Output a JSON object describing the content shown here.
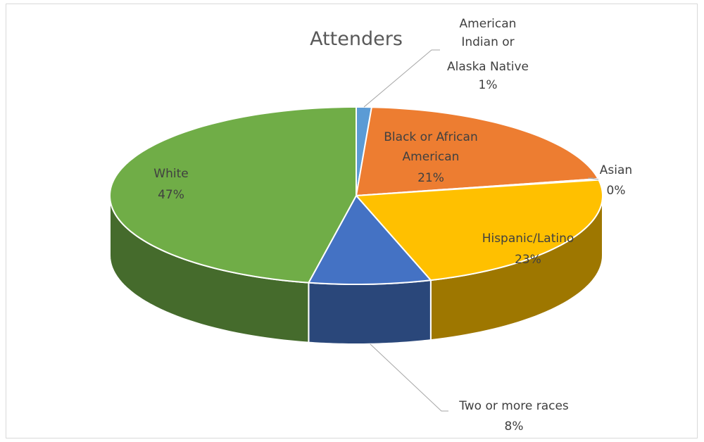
{
  "chart_data": {
    "type": "pie",
    "title": "Attenders",
    "slices": [
      {
        "label": "American Indian or Alaska Native",
        "value": 1,
        "value_label": "1%",
        "color": "#5b9bd5"
      },
      {
        "label": "Black or African American",
        "value": 21,
        "value_label": "21%",
        "color": "#ed7d31"
      },
      {
        "label": "Asian",
        "value": 0.2,
        "value_label": "0%",
        "color": "#a5a5a5"
      },
      {
        "label": "Hispanic/Latino",
        "value": 23,
        "value_label": "23%",
        "color": "#ffc000"
      },
      {
        "label": "Two or more races",
        "value": 8,
        "value_label": "8%",
        "color": "#4472c4"
      },
      {
        "label": "White",
        "value": 47,
        "value_label": "47%",
        "color": "#70ad47"
      }
    ],
    "style": "3d-pie",
    "legend": "none"
  },
  "labels": {
    "ai_lines": [
      "American",
      "Indian or",
      "Alaska Native"
    ],
    "black_lines": [
      "Black or African",
      "American"
    ],
    "asian_lines": [
      "Asian"
    ],
    "hispanic_lines": [
      "Hispanic/Latino"
    ],
    "two_lines": [
      "Two or more races"
    ],
    "white_lines": [
      "White"
    ]
  }
}
